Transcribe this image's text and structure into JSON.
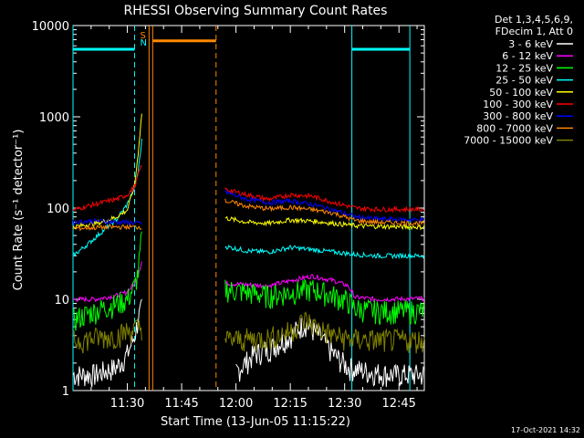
{
  "chart_data": {
    "type": "line",
    "title": "RHESSI Observing Summary Count Rates",
    "xlabel": "Start Time (13-Jun-05 11:15:22)",
    "ylabel": "Count Rate (s⁻¹ detector⁻¹)",
    "yscale": "log",
    "ylim": [
      1,
      10000
    ],
    "xlim_minutes": [
      0,
      97
    ],
    "x_ticks": [
      {
        "label": "11:30",
        "minute": 15
      },
      {
        "label": "11:45",
        "minute": 30
      },
      {
        "label": "12:00",
        "minute": 45
      },
      {
        "label": "12:15",
        "minute": 60
      },
      {
        "label": "12:30",
        "minute": 75
      },
      {
        "label": "12:45",
        "minute": 90
      }
    ],
    "y_ticks": [
      {
        "label": "1",
        "value": 1
      },
      {
        "label": "10",
        "value": 10
      },
      {
        "label": "100",
        "value": 100
      },
      {
        "label": "1000",
        "value": 1000
      },
      {
        "label": "10000",
        "value": 10000
      }
    ],
    "legend_header": [
      "Det 1,3,4,5,6,9,",
      "FDecim 1, Att 0"
    ],
    "legend_position": "right",
    "series": [
      {
        "name": "3 - 6 keV",
        "color": "#ffffff",
        "points": [
          [
            0,
            1.5
          ],
          [
            6,
            1.5
          ],
          [
            12,
            1.8
          ],
          [
            15,
            2.5
          ],
          [
            17,
            4
          ],
          [
            18,
            6
          ],
          [
            19,
            8
          ]
        ],
        "points2": [
          [
            45,
            1.6
          ],
          [
            50,
            2.5
          ],
          [
            55,
            3
          ],
          [
            60,
            4
          ],
          [
            64,
            5.5
          ],
          [
            68,
            4
          ],
          [
            72,
            2.5
          ],
          [
            76,
            1.8
          ],
          [
            82,
            1.6
          ],
          [
            88,
            1.5
          ],
          [
            97,
            1.5
          ]
        ]
      },
      {
        "name": "6 - 12 keV",
        "color": "#ff00ff",
        "points": [
          [
            0,
            10
          ],
          [
            6,
            10
          ],
          [
            12,
            11
          ],
          [
            15,
            12
          ],
          [
            17,
            15
          ],
          [
            18,
            19
          ],
          [
            19,
            26
          ]
        ],
        "points2": [
          [
            42,
            15
          ],
          [
            48,
            14.5
          ],
          [
            54,
            14
          ],
          [
            60,
            16
          ],
          [
            66,
            18
          ],
          [
            72,
            16
          ],
          [
            76,
            14
          ],
          [
            78,
            10.5
          ],
          [
            84,
            10
          ],
          [
            97,
            10.2
          ]
        ]
      },
      {
        "name": "12 - 25 keV",
        "color": "#00ff00",
        "points": [
          [
            0,
            6
          ],
          [
            4,
            7
          ],
          [
            8,
            8
          ],
          [
            12,
            9
          ],
          [
            15,
            10
          ],
          [
            17,
            14
          ],
          [
            18,
            20
          ],
          [
            19,
            50
          ]
        ],
        "points2": [
          [
            42,
            13
          ],
          [
            48,
            12
          ],
          [
            54,
            11
          ],
          [
            60,
            12
          ],
          [
            66,
            13
          ],
          [
            72,
            11
          ],
          [
            76,
            9.5
          ],
          [
            78,
            8
          ],
          [
            84,
            7.5
          ],
          [
            97,
            7.5
          ]
        ]
      },
      {
        "name": "25 - 50 keV",
        "color": "#00ffff",
        "points": [
          [
            0,
            30
          ],
          [
            4,
            40
          ],
          [
            8,
            55
          ],
          [
            12,
            75
          ],
          [
            15,
            110
          ],
          [
            17,
            170
          ],
          [
            18,
            250
          ],
          [
            19,
            550
          ]
        ],
        "points2": [
          [
            42,
            38
          ],
          [
            48,
            34
          ],
          [
            54,
            33
          ],
          [
            60,
            37
          ],
          [
            66,
            35
          ],
          [
            72,
            33
          ],
          [
            78,
            31
          ],
          [
            84,
            30
          ],
          [
            97,
            30
          ]
        ]
      },
      {
        "name": "50 - 100 keV",
        "color": "#ffff00",
        "points": [
          [
            0,
            62
          ],
          [
            4,
            66
          ],
          [
            8,
            70
          ],
          [
            12,
            80
          ],
          [
            15,
            95
          ],
          [
            17,
            180
          ],
          [
            18,
            400
          ],
          [
            19,
            1100
          ]
        ],
        "points2": [
          [
            42,
            78
          ],
          [
            48,
            70
          ],
          [
            54,
            68
          ],
          [
            60,
            74
          ],
          [
            66,
            72
          ],
          [
            72,
            68
          ],
          [
            78,
            64
          ],
          [
            84,
            63
          ],
          [
            97,
            62
          ]
        ]
      },
      {
        "name": "100 - 300 keV",
        "color": "#ff0000",
        "points": [
          [
            0,
            95
          ],
          [
            4,
            105
          ],
          [
            8,
            115
          ],
          [
            12,
            125
          ],
          [
            15,
            140
          ],
          [
            17,
            170
          ],
          [
            18,
            230
          ],
          [
            19,
            300
          ]
        ],
        "points2": [
          [
            42,
            160
          ],
          [
            48,
            140
          ],
          [
            54,
            125
          ],
          [
            60,
            140
          ],
          [
            66,
            135
          ],
          [
            72,
            115
          ],
          [
            78,
            100
          ],
          [
            84,
            97
          ],
          [
            97,
            97
          ]
        ]
      },
      {
        "name": "300 - 800 keV",
        "color": "#0000ff",
        "points": [
          [
            0,
            70
          ],
          [
            4,
            72
          ],
          [
            8,
            72
          ],
          [
            12,
            70
          ],
          [
            15,
            70
          ],
          [
            18,
            68
          ],
          [
            19,
            68
          ]
        ],
        "points2": [
          [
            42,
            150
          ],
          [
            48,
            125
          ],
          [
            54,
            115
          ],
          [
            60,
            120
          ],
          [
            66,
            110
          ],
          [
            72,
            95
          ],
          [
            78,
            80
          ],
          [
            84,
            76
          ],
          [
            97,
            74
          ]
        ]
      },
      {
        "name": "800 - 7000 keV",
        "color": "#ff8800",
        "points": [
          [
            0,
            60
          ],
          [
            6,
            61
          ],
          [
            12,
            62
          ],
          [
            19,
            62
          ]
        ],
        "points2": [
          [
            42,
            120
          ],
          [
            48,
            105
          ],
          [
            54,
            98
          ],
          [
            60,
            102
          ],
          [
            66,
            96
          ],
          [
            72,
            88
          ],
          [
            78,
            73
          ],
          [
            84,
            70
          ],
          [
            97,
            68
          ]
        ]
      },
      {
        "name": "7000 - 15000 keV",
        "color": "#808000",
        "points": [
          [
            0,
            3.5
          ],
          [
            6,
            3.8
          ],
          [
            12,
            4
          ],
          [
            15,
            4.5
          ],
          [
            19,
            5
          ]
        ],
        "points2": [
          [
            42,
            3.6
          ],
          [
            48,
            3.7
          ],
          [
            54,
            3.8
          ],
          [
            60,
            4.5
          ],
          [
            64,
            6
          ],
          [
            68,
            4.8
          ],
          [
            72,
            4
          ],
          [
            76,
            3.7
          ],
          [
            84,
            3.6
          ],
          [
            97,
            3.6
          ]
        ]
      }
    ],
    "annotations": {
      "saa_label": "S",
      "night_label": "N",
      "saa_color": "#ff8800",
      "night_color": "#00ffff",
      "night_bars": [
        [
          0,
          17
        ],
        [
          77,
          93
        ]
      ],
      "saa_bar": [
        22,
        39.5
      ],
      "cyan_solid_lines": [
        0,
        77,
        93
      ],
      "cyan_dashed_lines": [
        17
      ],
      "orange_solid_lines": [
        21,
        22
      ],
      "orange_dashed_lines": [
        39.5
      ],
      "bar_level": 5500,
      "saa_bar_level": 6800
    },
    "footer_date": "17-Oct-2021 14:32"
  }
}
